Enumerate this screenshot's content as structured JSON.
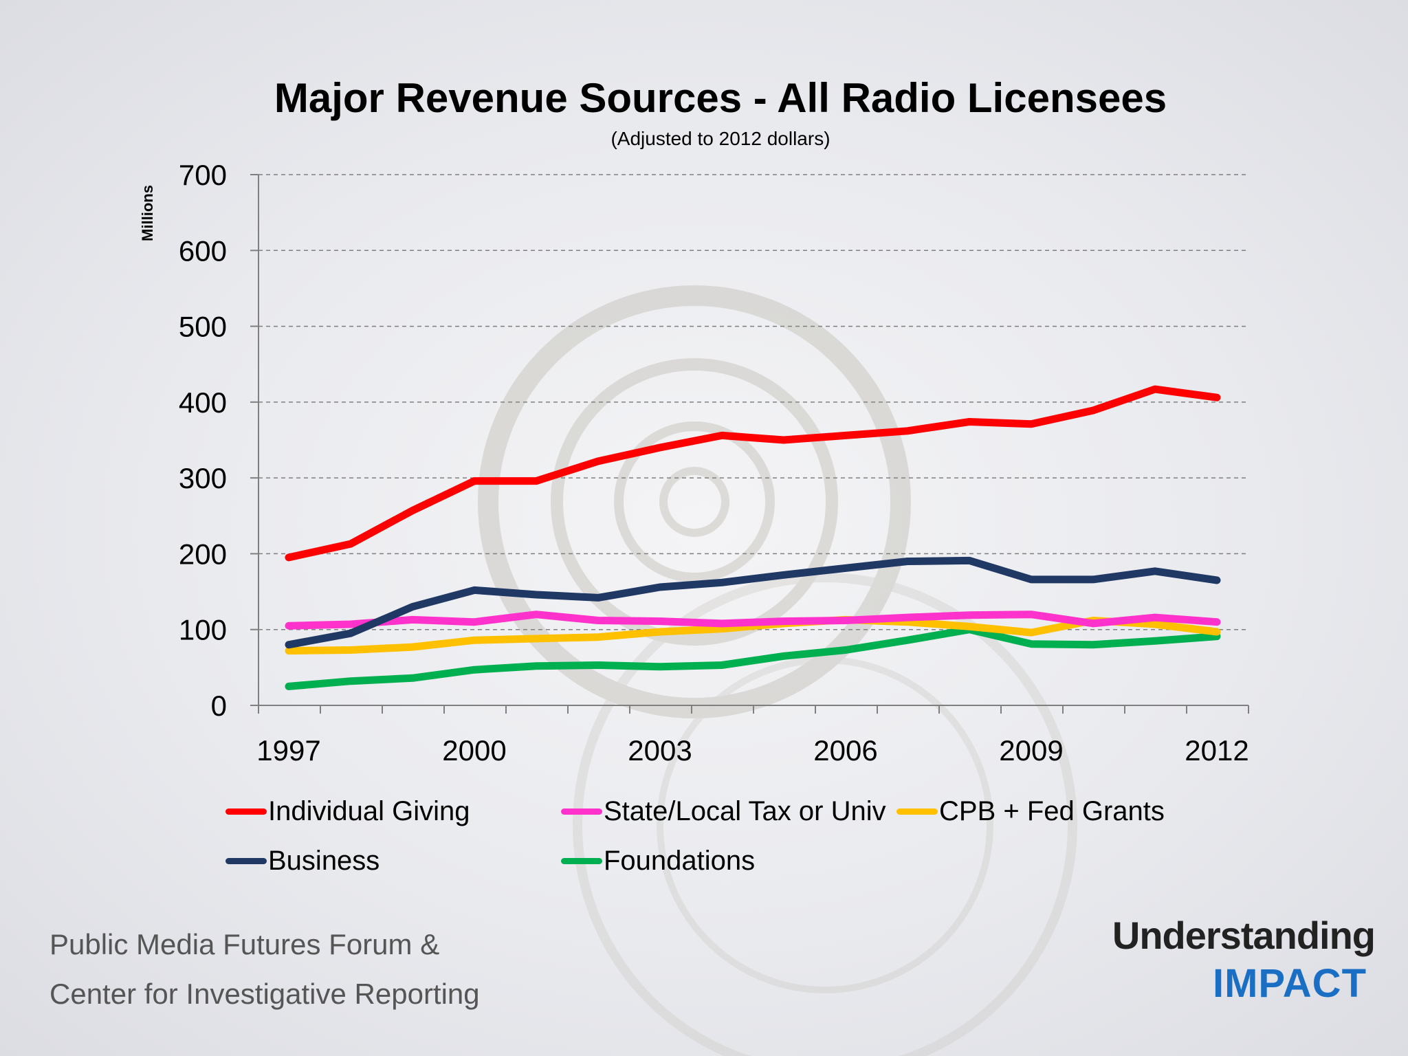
{
  "title": "Major Revenue Sources -  All Radio Licensees",
  "subtitle": "(Adjusted to 2012 dollars)",
  "footer": {
    "line1": "Public Media Futures Forum &",
    "line2": "Center for Investigative Reporting"
  },
  "logo": {
    "line1": "Understanding",
    "line2": "IMPACT"
  },
  "chart_data": {
    "type": "line",
    "title": "Major Revenue Sources -  All Radio Licensees",
    "subtitle": "(Adjusted to 2012 dollars)",
    "xlabel": "",
    "ylabel": "Millions",
    "ylim": [
      0,
      700
    ],
    "yticks": [
      0,
      100,
      200,
      300,
      400,
      500,
      600,
      700
    ],
    "x": [
      1997,
      1998,
      1999,
      2000,
      2001,
      2002,
      2003,
      2004,
      2005,
      2006,
      2007,
      2008,
      2009,
      2010,
      2011,
      2012
    ],
    "xtick_labels": [
      "1997",
      "2000",
      "2003",
      "2006",
      "2009",
      "2012"
    ],
    "grid": "horizontal dashed",
    "legend_position": "bottom",
    "series": [
      {
        "name": "Individual Giving",
        "color": "#ff0000",
        "values": [
          195,
          213,
          257,
          296,
          296,
          322,
          340,
          356,
          350,
          356,
          362,
          374,
          371,
          389,
          417,
          406
        ]
      },
      {
        "name": "State/Local Tax or Univ",
        "color": "#ff33cc",
        "values": [
          105,
          107,
          113,
          110,
          120,
          112,
          111,
          108,
          111,
          112,
          116,
          119,
          120,
          108,
          116,
          110
        ]
      },
      {
        "name": "CPB + Fed Grants",
        "color": "#ffc000",
        "values": [
          72,
          73,
          77,
          86,
          88,
          90,
          97,
          101,
          108,
          113,
          110,
          104,
          96,
          112,
          107,
          97
        ]
      },
      {
        "name": "Business",
        "color": "#1f3864",
        "values": [
          80,
          95,
          130,
          152,
          146,
          142,
          156,
          162,
          172,
          181,
          190,
          191,
          166,
          166,
          177,
          165
        ]
      },
      {
        "name": "Foundations",
        "color": "#00b050",
        "values": [
          25,
          32,
          36,
          47,
          52,
          53,
          51,
          53,
          65,
          73,
          86,
          100,
          81,
          80,
          85,
          91
        ]
      }
    ]
  }
}
